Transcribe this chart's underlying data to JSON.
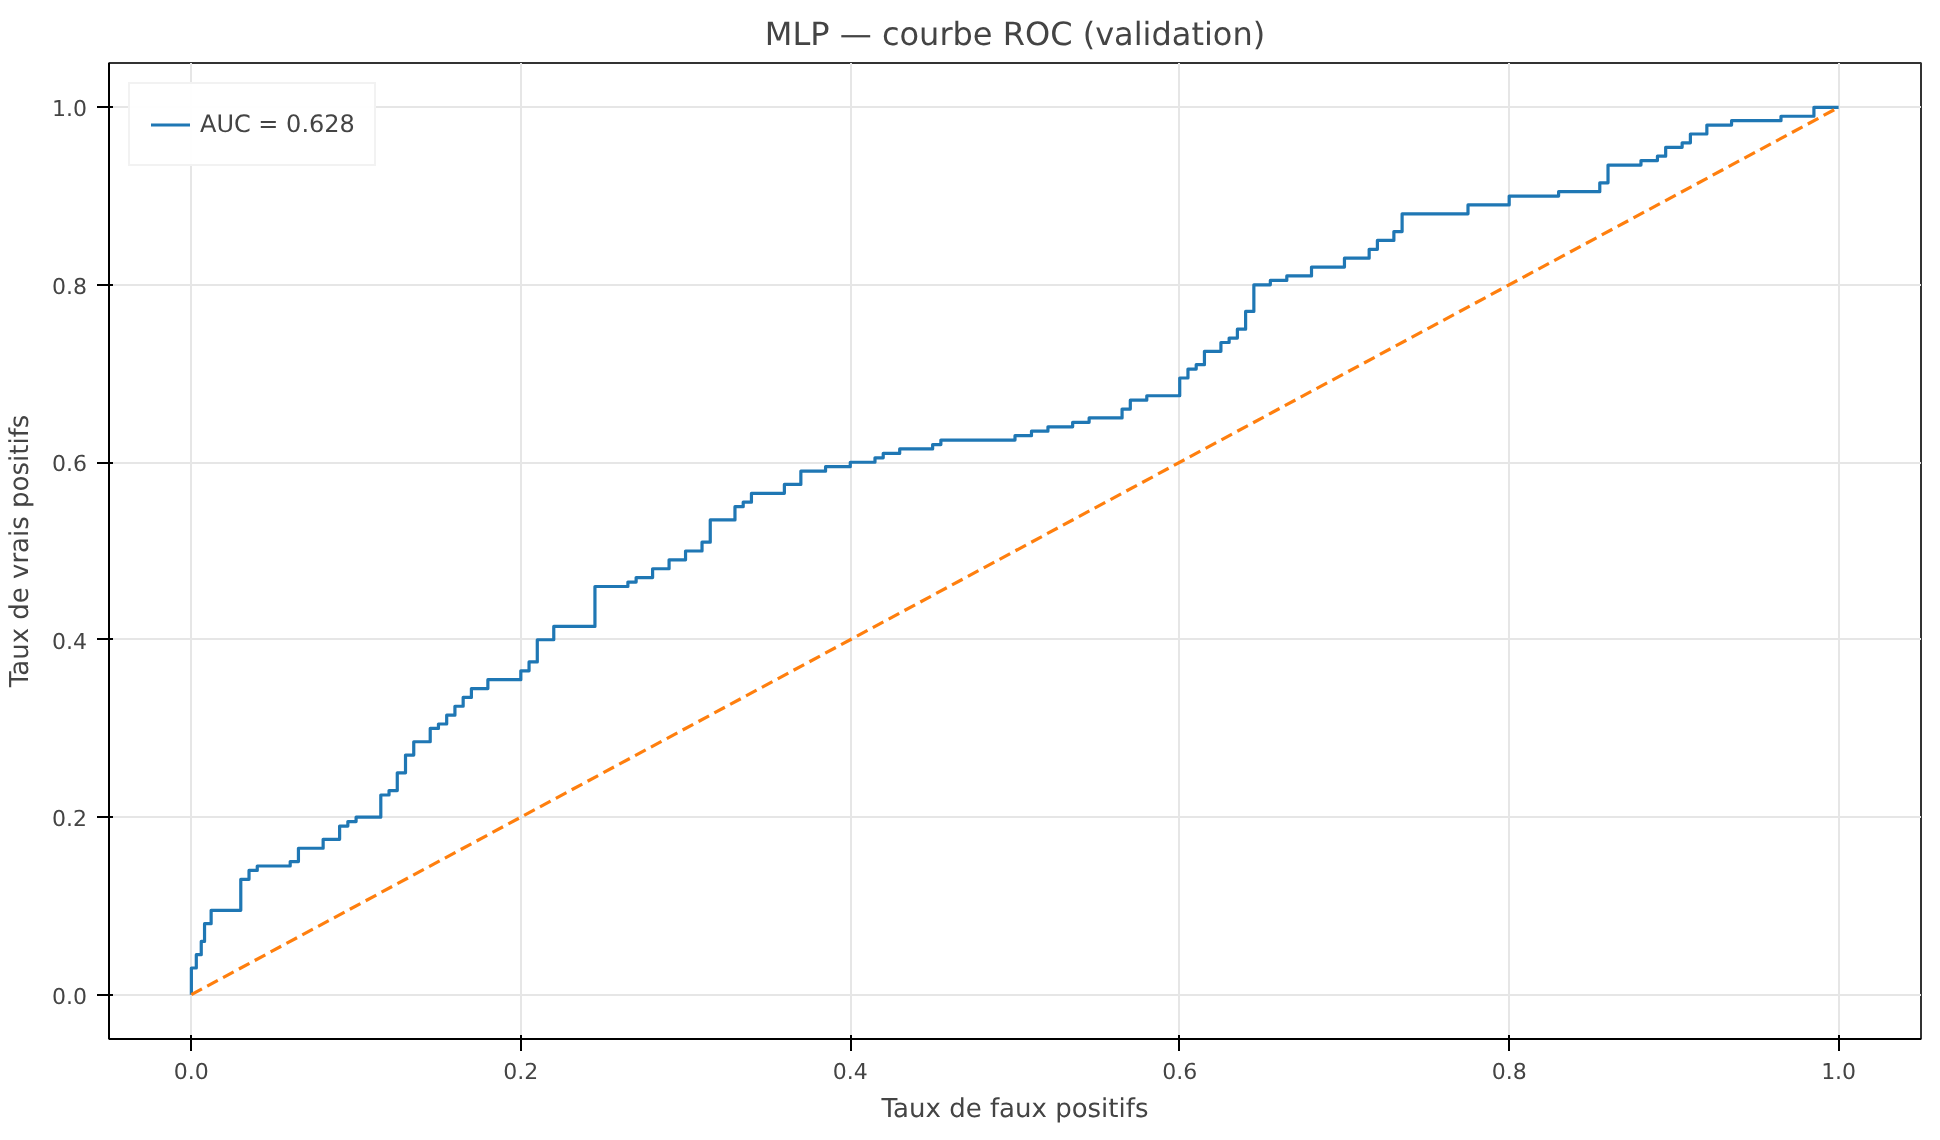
{
  "chart_data": {
    "type": "line",
    "title": "MLP — courbe ROC (validation)",
    "xlabel": "Taux de faux positifs",
    "ylabel": "Taux de vrais positifs",
    "series": [
      {
        "name": "AUC = 0.628",
        "type": "step",
        "color": "#1f77b4",
        "line_style": "solid",
        "x": [
          0,
          0,
          0.003,
          0.006,
          0.008,
          0.012,
          0.03,
          0.035,
          0.04,
          0.06,
          0.065,
          0.08,
          0.09,
          0.095,
          0.1,
          0.115,
          0.12,
          0.125,
          0.13,
          0.135,
          0.145,
          0.15,
          0.155,
          0.16,
          0.165,
          0.17,
          0.18,
          0.2,
          0.205,
          0.21,
          0.22,
          0.245,
          0.265,
          0.27,
          0.28,
          0.29,
          0.3,
          0.31,
          0.315,
          0.33,
          0.335,
          0.34,
          0.36,
          0.37,
          0.385,
          0.4,
          0.415,
          0.42,
          0.43,
          0.45,
          0.455,
          0.5,
          0.51,
          0.52,
          0.535,
          0.545,
          0.565,
          0.57,
          0.58,
          0.6,
          0.605,
          0.61,
          0.615,
          0.625,
          0.63,
          0.635,
          0.64,
          0.645,
          0.655,
          0.665,
          0.68,
          0.7,
          0.715,
          0.72,
          0.73,
          0.735,
          0.775,
          0.8,
          0.83,
          0.855,
          0.86,
          0.88,
          0.89,
          0.895,
          0.905,
          0.91,
          0.92,
          0.935,
          0.965,
          0.985,
          1.0
        ],
        "values": [
          0,
          0.03,
          0.045,
          0.06,
          0.08,
          0.095,
          0.13,
          0.14,
          0.145,
          0.15,
          0.165,
          0.175,
          0.19,
          0.195,
          0.2,
          0.225,
          0.23,
          0.25,
          0.27,
          0.285,
          0.3,
          0.305,
          0.315,
          0.325,
          0.335,
          0.345,
          0.355,
          0.365,
          0.375,
          0.4,
          0.415,
          0.46,
          0.465,
          0.47,
          0.48,
          0.49,
          0.5,
          0.51,
          0.535,
          0.55,
          0.555,
          0.565,
          0.575,
          0.59,
          0.595,
          0.6,
          0.605,
          0.61,
          0.615,
          0.62,
          0.625,
          0.63,
          0.635,
          0.64,
          0.645,
          0.65,
          0.66,
          0.67,
          0.675,
          0.695,
          0.705,
          0.71,
          0.725,
          0.735,
          0.74,
          0.75,
          0.77,
          0.8,
          0.805,
          0.81,
          0.82,
          0.83,
          0.84,
          0.85,
          0.86,
          0.88,
          0.89,
          0.9,
          0.905,
          0.915,
          0.935,
          0.94,
          0.945,
          0.955,
          0.96,
          0.97,
          0.98,
          0.985,
          0.99,
          1.0,
          1.0
        ]
      },
      {
        "color": "#ff7f0e",
        "line_style": "dashed",
        "x": [
          0,
          1
        ],
        "values": [
          0,
          1
        ]
      }
    ],
    "xlim": [
      -0.05,
      1.05
    ],
    "ylim": [
      -0.05,
      1.05
    ],
    "xticks": [
      {
        "value": 0,
        "label": "0.0"
      },
      {
        "value": 0.2,
        "label": "0.2"
      },
      {
        "value": 0.4,
        "label": "0.4"
      },
      {
        "value": 0.6,
        "label": "0.6"
      },
      {
        "value": 0.8,
        "label": "0.8"
      },
      {
        "value": 1,
        "label": "1.0"
      }
    ],
    "yticks": [
      {
        "value": 0,
        "label": "0.0"
      },
      {
        "value": 0.2,
        "label": "0.2"
      },
      {
        "value": 0.4,
        "label": "0.4"
      },
      {
        "value": 0.6,
        "label": "0.6"
      },
      {
        "value": 0.8,
        "label": "0.8"
      },
      {
        "value": 1,
        "label": "1.0"
      }
    ],
    "grid": true,
    "legend": "top left"
  }
}
